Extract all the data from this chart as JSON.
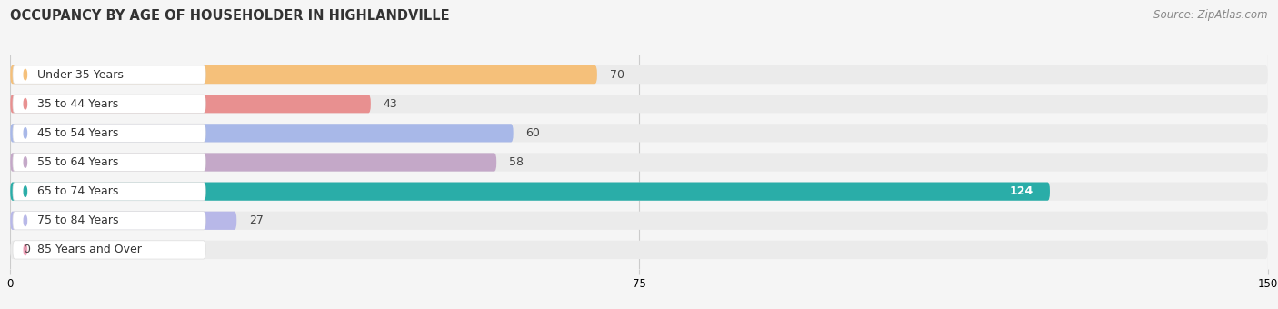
{
  "title": "OCCUPANCY BY AGE OF HOUSEHOLDER IN HIGHLANDVILLE",
  "source": "Source: ZipAtlas.com",
  "categories": [
    "Under 35 Years",
    "35 to 44 Years",
    "45 to 54 Years",
    "55 to 64 Years",
    "65 to 74 Years",
    "75 to 84 Years",
    "85 Years and Over"
  ],
  "values": [
    70,
    43,
    60,
    58,
    124,
    27,
    0
  ],
  "bar_colors": [
    "#f5c07a",
    "#e89090",
    "#a8b8e8",
    "#c4a8c8",
    "#2aada8",
    "#b8b8e8",
    "#f0a0b8"
  ],
  "xlim": [
    0,
    150
  ],
  "xticks": [
    0,
    75,
    150
  ],
  "title_fontsize": 10.5,
  "source_fontsize": 8.5,
  "label_fontsize": 9,
  "value_fontsize": 9,
  "bar_height": 0.55,
  "row_bg_color": "#ebebeb",
  "label_box_color": "#ffffff",
  "gap_color": "#f5f5f5"
}
